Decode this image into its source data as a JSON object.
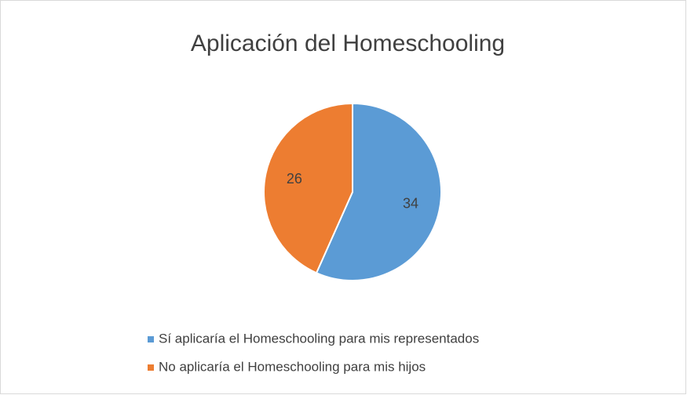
{
  "chart_data": {
    "type": "pie",
    "title": "Aplicación del Homeschooling",
    "categories": [
      "Sí aplicaría el Homeschooling para mis representados",
      "No aplicaría el Homeschooling para mis hijos"
    ],
    "values": [
      34,
      26
    ],
    "colors": [
      "#5b9bd5",
      "#ed7d31"
    ],
    "legend": "bottom"
  }
}
